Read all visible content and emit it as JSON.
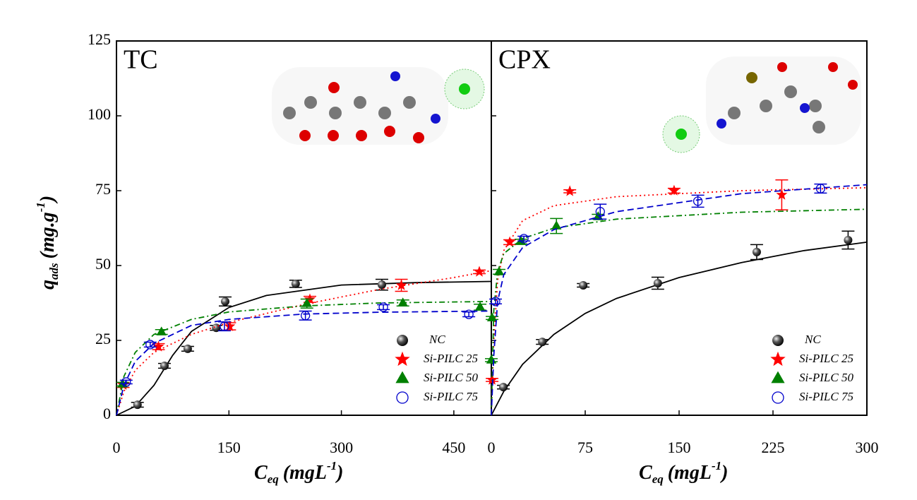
{
  "chart_data": [
    {
      "type": "scatter",
      "title": "TC",
      "xlabel": [
        "C",
        "eq",
        "(mgL",
        "-1",
        ")"
      ],
      "ylabel": [
        "q",
        "ads",
        "(mg.g",
        "-1",
        ")"
      ],
      "xlim": [
        0,
        500
      ],
      "xticks": [
        0,
        150,
        300,
        450
      ],
      "ylim": [
        0,
        125
      ],
      "yticks": [
        0,
        25,
        50,
        75,
        100,
        125
      ],
      "legend": "lower right",
      "series": [
        {
          "name": "NC",
          "color": "#000000",
          "marker": "sphere",
          "dash": "solid",
          "x": [
            28,
            64,
            95,
            133,
            145,
            239,
            354
          ],
          "values": [
            3.5,
            16.5,
            22.2,
            29.2,
            38,
            43.9,
            43.6
          ],
          "errors": [
            0.8,
            0.8,
            0.8,
            0.8,
            1.5,
            1.2,
            1.8
          ],
          "fit": {
            "x": [
              0,
              25,
              50,
              75,
              100,
              150,
              200,
              300,
              400,
              500
            ],
            "values": [
              0,
              3,
              10,
              20,
              28,
              36,
              40,
              43.5,
              44.3,
              44.7
            ]
          }
        },
        {
          "name": "Si-PILC 25",
          "color": "#ff0000",
          "marker": "star",
          "dash": "dot",
          "x": [
            9,
            56,
            151,
            258,
            380,
            484
          ],
          "values": [
            10.1,
            22.9,
            29.7,
            38.7,
            43.4,
            47.9
          ],
          "errors": [
            0.8,
            1,
            1.2,
            1,
            2,
            0.6
          ],
          "fit": {
            "x": [
              0,
              10,
              25,
              50,
              100,
              150,
              250,
              350,
              450,
              500
            ],
            "values": [
              0,
              8,
              15,
              21,
              27,
              31,
              37,
              42,
              46,
              48.3
            ]
          }
        },
        {
          "name": "Si-PILC 50",
          "color": "#008000",
          "marker": "triangle",
          "dash": "dashdot",
          "x": [
            8,
            60,
            254,
            382,
            485
          ],
          "values": [
            10.4,
            27.8,
            37.3,
            37.5,
            36.1
          ],
          "errors": [
            0.6,
            0.8,
            1.5,
            1,
            1
          ],
          "fit": {
            "x": [
              0,
              10,
              25,
              50,
              100,
              150,
              250,
              350,
              500
            ],
            "values": [
              0,
              13,
              21,
              27,
              32,
              34.5,
              36.5,
              37.5,
              38
            ]
          }
        },
        {
          "name": "Si-PILC 75",
          "color": "#0000cc",
          "marker": "circle-open",
          "dash": "dash",
          "x": [
            13,
            45,
            144,
            252,
            356,
            470
          ],
          "values": [
            11.1,
            23.6,
            29.7,
            33.3,
            36.1,
            33.7
          ],
          "errors": [
            0.6,
            0.8,
            1.5,
            1.5,
            0.8,
            0.8
          ],
          "fit": {
            "x": [
              0,
              10,
              25,
              50,
              100,
              150,
              250,
              350,
              500
            ],
            "values": [
              0,
              10,
              18,
              24,
              30,
              32,
              33.8,
              34.4,
              34.8
            ]
          }
        }
      ]
    },
    {
      "type": "scatter",
      "title": "CPX",
      "xlim": [
        0,
        300
      ],
      "xticks": [
        0,
        75,
        150,
        225,
        300
      ],
      "ylim": [
        0,
        125
      ],
      "legend": "lower right",
      "series": [
        {
          "name": "NC",
          "color": "#000000",
          "marker": "sphere",
          "dash": "solid",
          "x": [
            9.6,
            40.7,
            73.4,
            133,
            212,
            285
          ],
          "values": [
            9.4,
            24.5,
            43.4,
            44.1,
            54.5,
            58.5
          ],
          "errors": [
            0.6,
            0.8,
            0.6,
            2,
            2.5,
            3
          ],
          "fit": {
            "x": [
              0,
              10,
              25,
              50,
              75,
              100,
              150,
              200,
              250,
              300
            ],
            "values": [
              0,
              8,
              17,
              27,
              34,
              39,
              46,
              51,
              55,
              57.8
            ]
          }
        },
        {
          "name": "Si-PILC 25",
          "color": "#ff0000",
          "marker": "star",
          "dash": "dot",
          "x": [
            0.6,
            14.7,
            62.7,
            146,
            232
          ],
          "values": [
            11.8,
            57.8,
            74.8,
            75,
            73.6
          ],
          "errors": [
            0.5,
            0.8,
            0.5,
            0.8,
            5
          ],
          "fit": {
            "x": [
              0,
              2,
              5,
              10,
              25,
              50,
              100,
              200,
              300
            ],
            "values": [
              0,
              25,
              45,
              55,
              65,
              70,
              73,
              75,
              76
            ]
          }
        },
        {
          "name": "Si-PILC 50",
          "color": "#008000",
          "marker": "triangle",
          "dash": "dashdot",
          "x": [
            0,
            0.6,
            6.2,
            23.7,
            52,
            85.3
          ],
          "values": [
            18.4,
            32.5,
            47.9,
            58,
            63.2,
            66.3
          ],
          "errors": [
            0.5,
            0.5,
            0.8,
            0.8,
            2.5,
            0.8
          ],
          "fit": {
            "x": [
              0,
              2,
              5,
              10,
              25,
              50,
              100,
              200,
              300
            ],
            "values": [
              0,
              35,
              48,
              54,
              59,
              62.5,
              65.5,
              67.8,
              68.8
            ]
          }
        },
        {
          "name": "Si-PILC 75",
          "color": "#0000cc",
          "marker": "circle-open",
          "dash": "dash",
          "x": [
            3.4,
            26,
            87,
            165,
            263
          ],
          "values": [
            38,
            59,
            68,
            71.5,
            75.7
          ],
          "errors": [
            0.8,
            0.8,
            2.5,
            2,
            1.5
          ],
          "fit": {
            "x": [
              0,
              2,
              5,
              10,
              25,
              50,
              100,
              200,
              300
            ],
            "values": [
              0,
              20,
              38,
              47,
              56,
              62,
              68,
              74,
              77
            ]
          }
        }
      ]
    }
  ]
}
